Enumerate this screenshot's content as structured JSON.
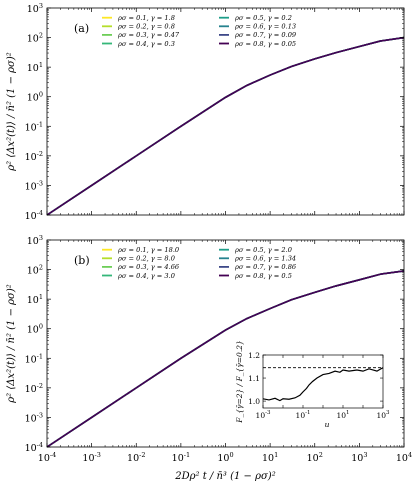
{
  "chart_data": [
    {
      "type": "line",
      "panel_label": "(a)",
      "ylabel": "ρ² ⟨Δx²(t)⟩ / n̄² (1 − ρσ)²",
      "xlabel": "",
      "xscale": "log",
      "yscale": "log",
      "xlim": [
        0.0001,
        10000
      ],
      "ylim": [
        0.0001,
        1000
      ],
      "x_ticks": [
        "10",
        "10",
        "10",
        "10",
        "10",
        "10",
        "10",
        "10",
        "10"
      ],
      "x_tick_exps": [
        "-4",
        "-3",
        "-2",
        "-1",
        "0",
        "1",
        "2",
        "3",
        "4"
      ],
      "y_ticks": [
        "10",
        "10",
        "10",
        "10",
        "10",
        "10",
        "10",
        "10"
      ],
      "y_tick_exps": [
        "-4",
        "-3",
        "-2",
        "-1",
        "0",
        "1",
        "2",
        "3"
      ],
      "legend_position": "top-right",
      "x": [
        0.0001,
        0.001,
        0.01,
        0.1,
        1,
        3,
        10,
        30,
        100,
        300,
        1000,
        3000,
        10000
      ],
      "series": [
        {
          "name": "ρσ = 0.1, γ = 1.8",
          "color": "#fde725",
          "values": [
            0.0001,
            0.001,
            0.01,
            0.1,
            0.95,
            2.4,
            5.4,
            10.5,
            19,
            31,
            50,
            77,
            100
          ]
        },
        {
          "name": "ρσ = 0.2, γ = 0.8",
          "color": "#b5de2b",
          "values": [
            0.0001,
            0.001,
            0.01,
            0.1,
            0.95,
            2.4,
            5.4,
            10.5,
            19,
            31,
            50,
            77,
            100
          ]
        },
        {
          "name": "ρσ = 0.3, γ = 0.47",
          "color": "#6ece58",
          "values": [
            0.0001,
            0.001,
            0.01,
            0.1,
            0.95,
            2.4,
            5.4,
            10.5,
            19,
            31,
            50,
            77,
            100
          ]
        },
        {
          "name": "ρσ = 0.4, γ = 0.3",
          "color": "#35b779",
          "values": [
            0.0001,
            0.001,
            0.01,
            0.1,
            0.95,
            2.4,
            5.4,
            10.5,
            19,
            31,
            50,
            77,
            100
          ]
        },
        {
          "name": "ρσ = 0.5, γ = 0.2",
          "color": "#1f9e89",
          "values": [
            0.0001,
            0.001,
            0.01,
            0.1,
            0.95,
            2.4,
            5.4,
            10.5,
            19,
            31,
            50,
            77,
            100
          ]
        },
        {
          "name": "ρσ = 0.6, γ = 0.13",
          "color": "#26828e",
          "values": [
            0.0001,
            0.001,
            0.01,
            0.1,
            0.95,
            2.4,
            5.4,
            10.5,
            19,
            31,
            50,
            77,
            100
          ]
        },
        {
          "name": "ρσ = 0.7, γ = 0.09",
          "color": "#3e4989",
          "values": [
            0.0001,
            0.001,
            0.01,
            0.1,
            0.95,
            2.4,
            5.4,
            10.5,
            19,
            31,
            50,
            77,
            100
          ]
        },
        {
          "name": "ρσ = 0.8, γ = 0.05",
          "color": "#440154",
          "values": [
            0.0001,
            0.001,
            0.01,
            0.1,
            0.95,
            2.4,
            5.4,
            10.5,
            19,
            31,
            50,
            77,
            100
          ]
        }
      ]
    },
    {
      "type": "line",
      "panel_label": "(b)",
      "ylabel": "ρ² ⟨Δx²(t)⟩ / n̄² (1 − ρσ)²",
      "xlabel": "2Dρ² t / n̄³ (1 − ρσ)²",
      "xscale": "log",
      "yscale": "log",
      "xlim": [
        0.0001,
        10000
      ],
      "ylim": [
        0.0001,
        1000
      ],
      "x_ticks": [
        "10",
        "10",
        "10",
        "10",
        "10",
        "10",
        "10",
        "10",
        "10"
      ],
      "x_tick_exps": [
        "-4",
        "-3",
        "-2",
        "-1",
        "0",
        "1",
        "2",
        "3",
        "4"
      ],
      "y_ticks": [
        "10",
        "10",
        "10",
        "10",
        "10",
        "10",
        "10",
        "10"
      ],
      "y_tick_exps": [
        "-4",
        "-3",
        "-2",
        "-1",
        "0",
        "1",
        "2",
        "3"
      ],
      "legend_position": "top-right",
      "x": [
        0.0001,
        0.001,
        0.01,
        0.1,
        1,
        3,
        10,
        30,
        100,
        300,
        1000,
        3000,
        10000
      ],
      "series": [
        {
          "name": "ρσ = 0.1, γ = 18.0",
          "color": "#fde725",
          "values": [
            0.0001,
            0.001,
            0.01,
            0.1,
            0.9,
            2.2,
            4.8,
            9.5,
            17,
            28,
            45,
            70,
            90
          ]
        },
        {
          "name": "ρσ = 0.2, γ = 8.0",
          "color": "#b5de2b",
          "values": [
            0.0001,
            0.001,
            0.01,
            0.1,
            0.9,
            2.2,
            4.8,
            9.5,
            17,
            28,
            45,
            70,
            90
          ]
        },
        {
          "name": "ρσ = 0.3, γ = 4.66",
          "color": "#6ece58",
          "values": [
            0.0001,
            0.001,
            0.01,
            0.1,
            0.9,
            2.2,
            4.8,
            9.5,
            17,
            28,
            45,
            70,
            90
          ]
        },
        {
          "name": "ρσ = 0.4, γ = 3.0",
          "color": "#35b779",
          "values": [
            0.0001,
            0.001,
            0.01,
            0.1,
            0.9,
            2.2,
            4.8,
            9.5,
            17,
            28,
            45,
            70,
            90
          ]
        },
        {
          "name": "ρσ = 0.5, γ = 2.0",
          "color": "#1f9e89",
          "values": [
            0.0001,
            0.001,
            0.01,
            0.1,
            0.9,
            2.2,
            4.8,
            9.5,
            17,
            28,
            45,
            70,
            90
          ]
        },
        {
          "name": "ρσ = 0.6, γ = 1.34",
          "color": "#26828e",
          "values": [
            0.0001,
            0.001,
            0.01,
            0.1,
            0.9,
            2.2,
            4.8,
            9.5,
            17,
            28,
            45,
            70,
            90
          ]
        },
        {
          "name": "ρσ = 0.7, γ = 0.86",
          "color": "#3e4989",
          "values": [
            0.0001,
            0.001,
            0.01,
            0.1,
            0.9,
            2.2,
            4.8,
            9.5,
            17,
            28,
            45,
            70,
            90
          ]
        },
        {
          "name": "ρσ = 0.8, γ = 0.5",
          "color": "#440154",
          "values": [
            0.0001,
            0.001,
            0.01,
            0.1,
            0.9,
            2.2,
            4.8,
            9.5,
            17,
            28,
            45,
            70,
            90
          ]
        }
      ]
    },
    {
      "type": "line",
      "role": "inset",
      "xlabel": "u",
      "ylabel": "F_{γ̄=2} / F_{γ̄=0.2}",
      "xscale": "log",
      "xlim": [
        0.001,
        1000
      ],
      "ylim": [
        0.97,
        1.2
      ],
      "x_ticks": [
        "10",
        "10",
        "10",
        "10"
      ],
      "x_tick_exps": [
        "-3",
        "-1",
        "1",
        "3"
      ],
      "y_ticks": [
        "1.0",
        "1.1",
        "1.2"
      ],
      "y_tick_values": [
        1.0,
        1.1,
        1.2
      ],
      "reference_line": 1.145,
      "x": [
        0.001,
        0.002,
        0.004,
        0.007,
        0.01,
        0.02,
        0.04,
        0.07,
        0.1,
        0.15,
        0.2,
        0.3,
        0.5,
        1,
        2,
        4,
        7,
        10,
        20,
        50,
        100,
        200,
        500,
        1000
      ],
      "values": [
        1.01,
        1.005,
        1.012,
        1.002,
        1.01,
        1.008,
        1.014,
        1.025,
        1.04,
        1.055,
        1.07,
        1.085,
        1.1,
        1.115,
        1.12,
        1.13,
        1.125,
        1.135,
        1.13,
        1.135,
        1.13,
        1.14,
        1.13,
        1.145
      ]
    }
  ]
}
